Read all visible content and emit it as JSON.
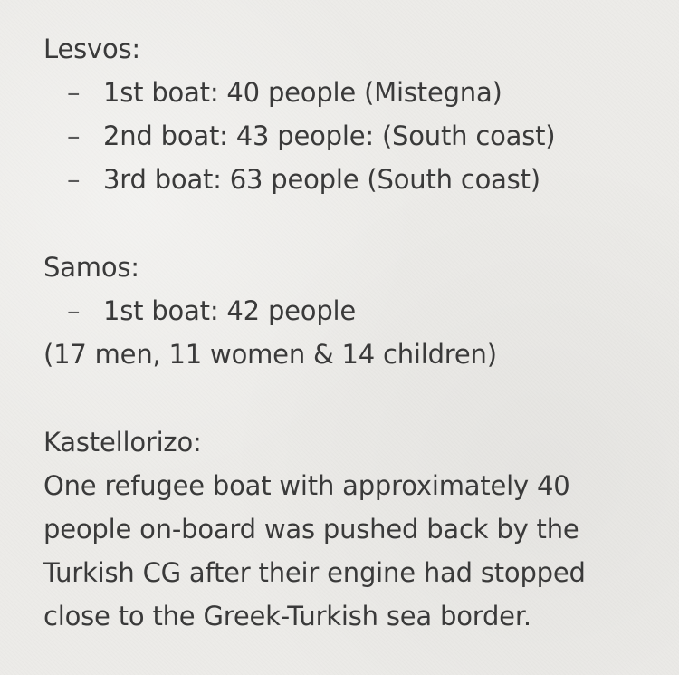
{
  "lesvos": {
    "title": "Lesvos:",
    "items": [
      "1st boat: 40 people (Mistegna)",
      "2nd boat: 43 people: (South coast)",
      "3rd boat: 63 people (South coast)"
    ]
  },
  "samos": {
    "title": "Samos:",
    "items": [
      "1st boat: 42 people"
    ],
    "note": "(17 men, 11 women & 14 children)"
  },
  "kastellorizo": {
    "title": "Kastellorizo:",
    "lines": [
      "One refugee boat with approximately 40",
      "people on-board was pushed back by the",
      "Turkish CG after their engine had stopped",
      "close to the Greek-Turkish sea border."
    ]
  },
  "dash_glyph": "–"
}
